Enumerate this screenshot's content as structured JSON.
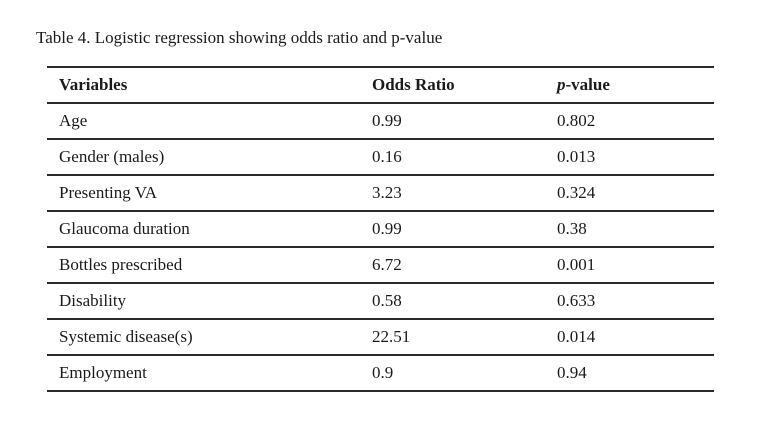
{
  "page": {
    "title": "Table 4. Logistic regression showing odds ratio and p-value"
  },
  "table": {
    "headers": {
      "variables": "Variables",
      "odds_ratio": "Odds Ratio",
      "p_value_italic": "p",
      "p_value_rest": "-value"
    },
    "rows": [
      {
        "variable": "Age",
        "odds_ratio": "0.99",
        "p_value": "0.802"
      },
      {
        "variable": "Gender (males)",
        "odds_ratio": "0.16",
        "p_value": "0.013"
      },
      {
        "variable": "Presenting VA",
        "odds_ratio": "3.23",
        "p_value": "0.324"
      },
      {
        "variable": "Glaucoma duration",
        "odds_ratio": "0.99",
        "p_value": "0.38"
      },
      {
        "variable": "Bottles prescribed",
        "odds_ratio": "6.72",
        "p_value": "0.001"
      },
      {
        "variable": "Disability",
        "odds_ratio": "0.58",
        "p_value": "0.633"
      },
      {
        "variable": "Systemic disease(s)",
        "odds_ratio": "22.51",
        "p_value": "0.014"
      },
      {
        "variable": "Employment",
        "odds_ratio": "0.9",
        "p_value": "0.94"
      }
    ]
  }
}
